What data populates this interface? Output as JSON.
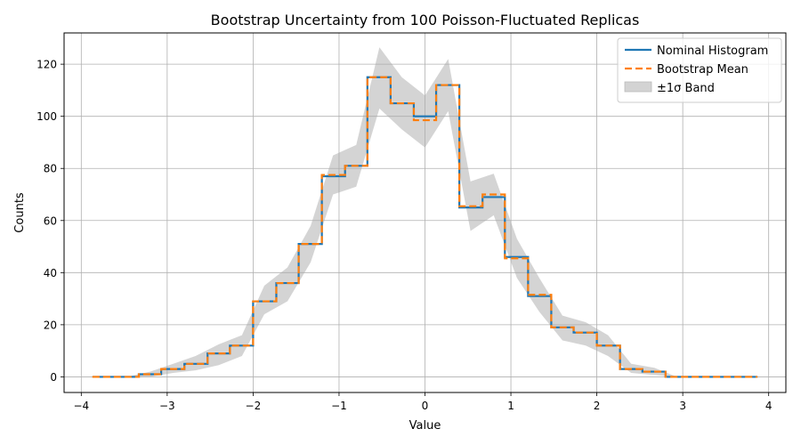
{
  "chart_data": {
    "type": "line",
    "title": "Bootstrap Uncertainty from 100 Poisson-Fluctuated Replicas",
    "xlabel": "Value",
    "ylabel": "Counts",
    "xlim": [
      -4.2,
      4.2
    ],
    "ylim": [
      -6,
      132
    ],
    "xticks": [
      -4,
      -3,
      -2,
      -1,
      0,
      1,
      2,
      3,
      4
    ],
    "xtick_labels": [
      "−4",
      "−3",
      "−2",
      "−1",
      "0",
      "1",
      "2",
      "3",
      "4"
    ],
    "yticks": [
      0,
      20,
      40,
      60,
      80,
      100,
      120
    ],
    "ytick_labels": [
      "0",
      "20",
      "40",
      "60",
      "80",
      "100",
      "120"
    ],
    "grid": true,
    "legend_position": "top-right",
    "bin_edges": [
      -3.87,
      -3.6,
      -3.33,
      -3.07,
      -2.8,
      -2.53,
      -2.27,
      -2.0,
      -1.73,
      -1.47,
      -1.2,
      -0.93,
      -0.67,
      -0.4,
      -0.13,
      0.13,
      0.4,
      0.67,
      0.93,
      1.2,
      1.47,
      1.73,
      2.0,
      2.27,
      2.53,
      2.8,
      3.07,
      3.33,
      3.6,
      3.87
    ],
    "bin_centers": [
      -3.73,
      -3.47,
      -3.2,
      -2.93,
      -2.67,
      -2.4,
      -2.13,
      -1.87,
      -1.6,
      -1.33,
      -1.07,
      -0.8,
      -0.53,
      -0.27,
      0.0,
      0.27,
      0.53,
      0.8,
      1.07,
      1.33,
      1.6,
      1.87,
      2.13,
      2.4,
      2.67,
      2.93,
      3.2,
      3.47,
      3.73
    ],
    "series": [
      {
        "name": "Nominal Histogram",
        "color": "#1f77b4",
        "style": "solid",
        "values": [
          0,
          0,
          1,
          3,
          5,
          9,
          12,
          29,
          36,
          51,
          77,
          81,
          115,
          105,
          100,
          112,
          65,
          69,
          46,
          31,
          19,
          17,
          12,
          3,
          2,
          0,
          0,
          0,
          0
        ]
      },
      {
        "name": "Bootstrap Mean",
        "color": "#ff7f0e",
        "style": "dashed",
        "values": [
          0,
          0,
          1,
          3,
          5,
          9,
          12,
          29,
          36,
          51,
          77.5,
          81,
          115,
          105,
          98.5,
          112,
          65.5,
          70,
          45.5,
          31.5,
          19,
          17,
          12,
          3,
          2,
          0,
          0,
          0,
          0
        ]
      }
    ],
    "band": {
      "name": "±1σ Band",
      "color": "#aaaaaa",
      "lower": [
        0,
        0,
        0,
        1.5,
        2.5,
        4.5,
        8,
        24,
        29,
        44,
        70,
        73,
        103,
        95,
        88,
        102,
        56,
        62,
        38,
        25,
        14,
        12,
        8,
        1.5,
        0.7,
        0,
        0,
        0,
        0
      ],
      "upper": [
        0,
        0,
        2,
        5,
        8,
        12.5,
        16,
        35,
        42,
        58,
        85,
        89,
        126.5,
        115,
        108,
        122,
        75,
        78,
        53,
        38,
        23.5,
        21,
        16,
        5,
        3.5,
        0,
        0,
        0,
        0
      ]
    }
  }
}
